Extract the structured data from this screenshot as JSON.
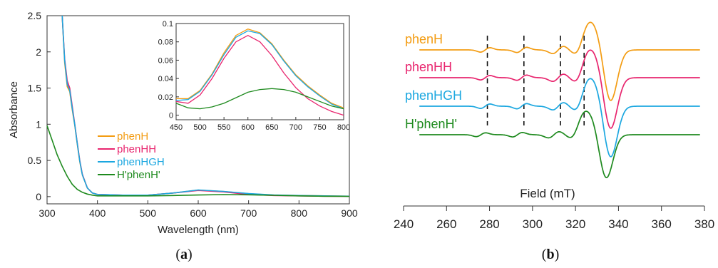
{
  "colors": {
    "phenH": "#F39C12",
    "phenHH": "#E8256E",
    "phenHGH": "#1BA7E0",
    "Hphen": "#1E8A1E"
  },
  "chart_data": [
    {
      "type": "line",
      "panel_label": "a",
      "xlabel": "Wavelength (nm)",
      "ylabel": "Absorbance",
      "xlim": [
        300,
        900
      ],
      "ylim": [
        -0.1,
        2.5
      ],
      "x_ticks": [
        300,
        400,
        500,
        600,
        700,
        800,
        900
      ],
      "y_ticks": [
        0,
        0.5,
        1,
        1.5,
        2,
        2.5
      ],
      "y_tick_labels": [
        "0",
        "0.5",
        "1",
        "1.5",
        "2",
        "2.5"
      ],
      "legend_position": "center-right",
      "series": [
        {
          "name": "phenH",
          "color_key": "phenH",
          "x": [
            330,
            335,
            340,
            345,
            350,
            355,
            360,
            365,
            370,
            380,
            390,
            400,
            450,
            500,
            550,
            600,
            650,
            700,
            750,
            800,
            850,
            900
          ],
          "y": [
            2.5,
            1.85,
            1.52,
            1.45,
            1.2,
            0.98,
            0.72,
            0.48,
            0.3,
            0.12,
            0.05,
            0.03,
            0.02,
            0.02,
            0.05,
            0.09,
            0.07,
            0.04,
            0.02,
            0.015,
            0.01,
            0.005
          ]
        },
        {
          "name": "phenHH",
          "color_key": "phenHH",
          "x": [
            330,
            335,
            340,
            345,
            350,
            355,
            360,
            365,
            370,
            380,
            390,
            400,
            450,
            500,
            550,
            600,
            650,
            700,
            750,
            800,
            850,
            900
          ],
          "y": [
            2.5,
            1.9,
            1.6,
            1.5,
            1.25,
            1.0,
            0.74,
            0.5,
            0.31,
            0.12,
            0.05,
            0.03,
            0.02,
            0.02,
            0.05,
            0.085,
            0.065,
            0.03,
            0.015,
            0.01,
            0.005,
            0.003
          ]
        },
        {
          "name": "phenHGH",
          "color_key": "phenHGH",
          "x": [
            330,
            335,
            340,
            345,
            350,
            355,
            360,
            365,
            370,
            380,
            390,
            400,
            450,
            500,
            550,
            600,
            650,
            700,
            750,
            800,
            850,
            900
          ],
          "y": [
            2.5,
            1.88,
            1.55,
            1.47,
            1.22,
            0.99,
            0.73,
            0.49,
            0.3,
            0.12,
            0.05,
            0.03,
            0.02,
            0.02,
            0.05,
            0.092,
            0.072,
            0.042,
            0.022,
            0.015,
            0.01,
            0.005
          ]
        },
        {
          "name": "H'phenH'",
          "color_key": "Hphen",
          "x": [
            300,
            310,
            320,
            330,
            340,
            350,
            360,
            370,
            380,
            390,
            400,
            450,
            500,
            550,
            600,
            650,
            700,
            750,
            800,
            850,
            900
          ],
          "y": [
            0.98,
            0.78,
            0.58,
            0.42,
            0.28,
            0.17,
            0.1,
            0.06,
            0.035,
            0.02,
            0.01,
            0.01,
            0.01,
            0.015,
            0.022,
            0.028,
            0.025,
            0.018,
            0.01,
            0.005,
            0.003
          ]
        }
      ],
      "inset": {
        "xlim": [
          450,
          800
        ],
        "ylim": [
          -0.005,
          0.1
        ],
        "x_ticks": [
          450,
          500,
          550,
          600,
          650,
          700,
          750,
          800
        ],
        "y_ticks": [
          0,
          0.02,
          0.04,
          0.06,
          0.08,
          0.1
        ],
        "y_tick_labels": [
          "0",
          "0.02",
          "0.04",
          "0.06",
          "0.08",
          "0.1"
        ],
        "series": [
          {
            "name": "phenH",
            "color_key": "phenH",
            "x": [
              450,
              475,
              500,
              525,
              550,
              575,
              600,
              625,
              650,
              675,
              700,
              725,
              750,
              775,
              800
            ],
            "y": [
              0.018,
              0.018,
              0.027,
              0.045,
              0.068,
              0.087,
              0.094,
              0.09,
              0.078,
              0.06,
              0.044,
              0.032,
              0.022,
              0.013,
              0.008
            ]
          },
          {
            "name": "phenHH",
            "color_key": "phenHH",
            "x": [
              450,
              475,
              500,
              525,
              550,
              575,
              600,
              625,
              650,
              675,
              700,
              725,
              750,
              775,
              800
            ],
            "y": [
              0.015,
              0.013,
              0.022,
              0.04,
              0.062,
              0.08,
              0.087,
              0.08,
              0.065,
              0.046,
              0.03,
              0.018,
              0.01,
              0.004,
              0.0
            ]
          },
          {
            "name": "phenHGH",
            "color_key": "phenHGH",
            "x": [
              450,
              475,
              500,
              525,
              550,
              575,
              600,
              625,
              650,
              675,
              700,
              725,
              750,
              775,
              800
            ],
            "y": [
              0.016,
              0.017,
              0.026,
              0.044,
              0.066,
              0.085,
              0.092,
              0.089,
              0.077,
              0.059,
              0.043,
              0.031,
              0.021,
              0.012,
              0.007
            ]
          },
          {
            "name": "H'phenH'",
            "color_key": "Hphen",
            "x": [
              450,
              475,
              500,
              525,
              550,
              575,
              600,
              625,
              650,
              675,
              700,
              725,
              750,
              775,
              800
            ],
            "y": [
              0.013,
              0.008,
              0.007,
              0.009,
              0.013,
              0.019,
              0.025,
              0.028,
              0.029,
              0.028,
              0.025,
              0.02,
              0.015,
              0.01,
              0.007
            ]
          }
        ]
      }
    },
    {
      "type": "line",
      "panel_label": "b",
      "xlabel": "Field (mT)",
      "xlim": [
        240,
        380
      ],
      "x_ticks": [
        240,
        260,
        280,
        300,
        320,
        340,
        360,
        380
      ],
      "dashed_markers": [
        279,
        296,
        313,
        324
      ],
      "series": [
        {
          "name": "phenH",
          "color_key": "phenH"
        },
        {
          "name": "phenHH",
          "color_key": "phenHH"
        },
        {
          "name": "phenHGH",
          "color_key": "phenHGH"
        },
        {
          "name": "H'phenH'",
          "color_key": "Hphen"
        }
      ]
    }
  ]
}
